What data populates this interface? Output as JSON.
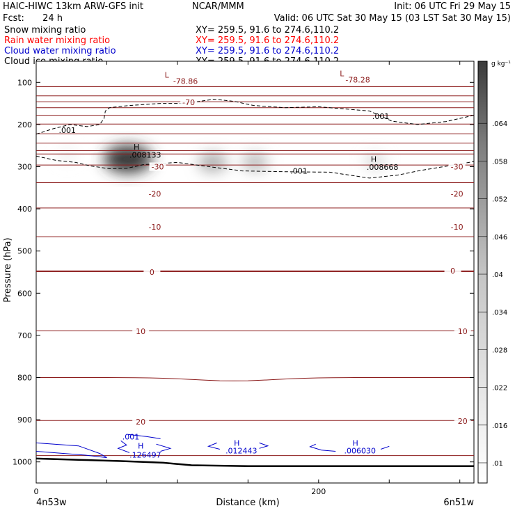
{
  "header": {
    "model": "HAIC-HIWC 13km ARW-GFS init",
    "center": "NCAR/MMM",
    "init": "Init: 06 UTC Fri 29 May 15",
    "fcst_label": "Fcst:",
    "fcst_value": "24 h",
    "valid": "Valid: 06 UTC Sat 30 May 15 (03 LST Sat 30 May 15)",
    "fields": [
      {
        "name": "Snow mixing ratio",
        "xy": "XY= 259.5, 91.6 to 274.6,110.2",
        "color": "#000000"
      },
      {
        "name": "Rain water mixing ratio",
        "xy": "XY= 259.5, 91.6 to 274.6,110.2",
        "color": "#ff0000"
      },
      {
        "name": "Cloud water mixing ratio",
        "xy": "XY= 259.5, 91.6 to 274.6,110.2",
        "color": "#0000cc"
      },
      {
        "name": "Cloud ice mixing ratio",
        "xy": "XY= 259.5, 91.6 to 274.6,110.2",
        "color": "#000000"
      }
    ]
  },
  "chart_data": {
    "type": "cross-section",
    "xlabel": "Distance (km)",
    "ylabel": "Pressure (hPa)",
    "xlim": [
      0,
      310
    ],
    "ylim": [
      1050,
      50
    ],
    "x_ticks": [
      0,
      200
    ],
    "x_minor_step": 50,
    "y_ticks": [
      100,
      200,
      300,
      400,
      500,
      600,
      700,
      800,
      900,
      1000
    ],
    "endpoints": {
      "left": "4n53w",
      "right": "6n51w"
    },
    "colorbar": {
      "units": "g kg⁻¹",
      "labels": [
        ".01",
        ".016",
        ".022",
        ".028",
        ".034",
        ".04",
        ".046",
        ".052",
        ".058",
        ".064"
      ],
      "min": 0.007,
      "max": 0.07
    },
    "isotherms": {
      "color": "#8b1a1a",
      "levels_hpa": [
        110,
        132,
        146,
        160,
        178,
        199,
        222,
        244,
        262,
        270,
        296,
        338,
        398,
        466,
        548,
        689,
        800,
        902,
        985
      ],
      "labels": [
        {
          "text": "-70",
          "x": 108,
          "p": 147
        },
        {
          "text": "-30",
          "x": 86,
          "p": 300
        },
        {
          "text": "-30",
          "x": 298,
          "p": 300
        },
        {
          "text": "-20",
          "x": 84,
          "p": 364
        },
        {
          "text": "-20",
          "x": 298,
          "p": 364
        },
        {
          "text": "-10",
          "x": 84,
          "p": 443
        },
        {
          "text": "-10",
          "x": 298,
          "p": 443
        },
        {
          "text": "0",
          "x": 82,
          "p": 550
        },
        {
          "text": "0",
          "x": 295,
          "p": 547
        },
        {
          "text": "10",
          "x": 74,
          "p": 690
        },
        {
          "text": "10",
          "x": 302,
          "p": 690
        },
        {
          "text": "20",
          "x": 74,
          "p": 905
        },
        {
          "text": "20",
          "x": 302,
          "p": 903
        }
      ],
      "lows": [
        {
          "text": "L",
          "x": 91,
          "p": 82
        },
        {
          "text": "-78.86",
          "x": 97,
          "p": 97
        },
        {
          "text": "L",
          "x": 215,
          "p": 79
        },
        {
          "text": "-78.28",
          "x": 219,
          "p": 94
        }
      ]
    },
    "ice_contour": {
      "label": ".001",
      "top_points": [
        [
          0,
          223
        ],
        [
          12,
          210
        ],
        [
          24,
          200
        ],
        [
          36,
          205
        ],
        [
          45,
          200
        ],
        [
          48,
          186
        ],
        [
          49,
          168
        ],
        [
          52,
          160
        ],
        [
          66,
          155
        ],
        [
          88,
          150
        ],
        [
          106,
          150
        ],
        [
          126,
          140
        ],
        [
          140,
          145
        ],
        [
          154,
          155
        ],
        [
          176,
          160
        ],
        [
          200,
          158
        ],
        [
          236,
          168
        ],
        [
          252,
          192
        ],
        [
          270,
          200
        ],
        [
          290,
          193
        ],
        [
          310,
          178
        ]
      ],
      "bottom_points": [
        [
          0,
          275
        ],
        [
          14,
          285
        ],
        [
          28,
          290
        ],
        [
          38,
          298
        ],
        [
          52,
          305
        ],
        [
          64,
          304
        ],
        [
          76,
          295
        ],
        [
          100,
          290
        ],
        [
          118,
          298
        ],
        [
          146,
          310
        ],
        [
          178,
          312
        ],
        [
          208,
          313
        ],
        [
          236,
          327
        ],
        [
          256,
          320
        ],
        [
          272,
          309
        ],
        [
          292,
          298
        ],
        [
          310,
          288
        ]
      ],
      "labels": [
        {
          "text": ".001",
          "x": 16,
          "p": 213
        },
        {
          "text": ".001",
          "x": 238,
          "p": 180
        },
        {
          "text": ".001",
          "x": 180,
          "p": 310
        }
      ]
    },
    "ice_maxima": [
      {
        "marker": "H",
        "value": ".008133",
        "x": 69,
        "p": 253,
        "val_p": 272
      },
      {
        "marker": "H",
        "value": ".008668",
        "x": 237,
        "p": 282,
        "val_p": 301
      }
    ],
    "ice_shading": [
      {
        "x": 65,
        "p": 282,
        "value": 0.07
      },
      {
        "x": 125,
        "p": 290,
        "value": 0.03
      },
      {
        "x": 155,
        "p": 289,
        "value": 0.025
      },
      {
        "x": 240,
        "p": 288,
        "value": 0.014
      },
      {
        "x": 22,
        "p": 272,
        "value": 0.006
      }
    ],
    "cloud_water": {
      "color": "#0000cc",
      "contour_label": ".001",
      "maxima": [
        {
          "marker": "H",
          "value": ".126497",
          "x": 72,
          "p": 962,
          "val_p": 983
        },
        {
          "marker": "H",
          "value": ".012443",
          "x": 140,
          "p": 955,
          "val_p": 973
        },
        {
          "marker": "H",
          "value": ".006030",
          "x": 224,
          "p": 955,
          "val_p": 973
        }
      ]
    },
    "terrain_hpa": [
      [
        0,
        992
      ],
      [
        30,
        995
      ],
      [
        60,
        998
      ],
      [
        90,
        1002
      ],
      [
        110,
        1008
      ],
      [
        150,
        1010
      ],
      [
        200,
        1010
      ],
      [
        310,
        1010
      ]
    ]
  }
}
